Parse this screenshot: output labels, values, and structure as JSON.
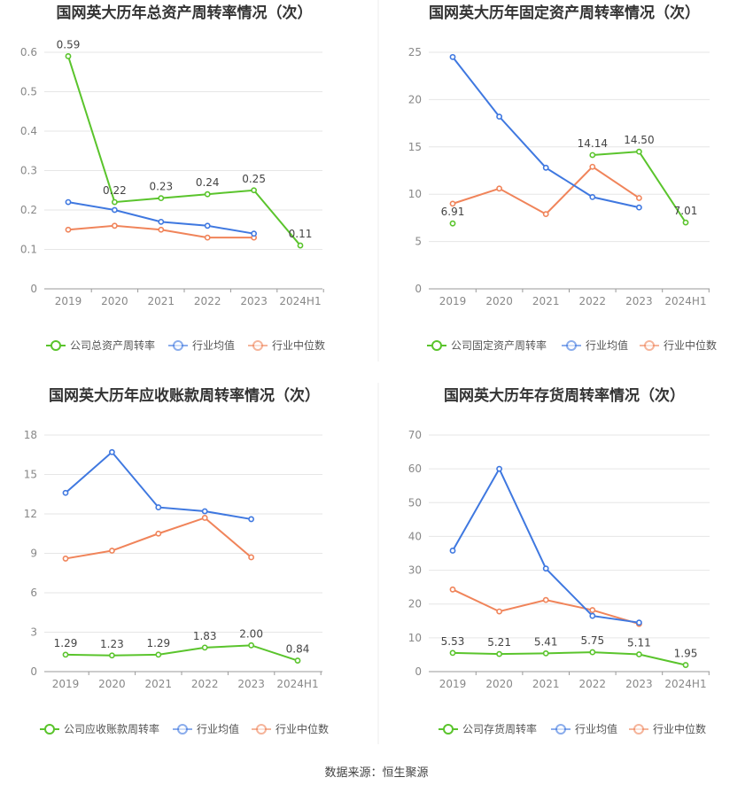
{
  "source": "数据来源：恒生聚源",
  "chart_data": [
    {
      "type": "line",
      "title": "国网英大历年总资产周转率情况（次）",
      "categories": [
        "2019",
        "2020",
        "2021",
        "2022",
        "2023",
        "2024H1"
      ],
      "ylim": [
        0,
        0.6
      ],
      "yticks": [
        "0",
        "0.1",
        "0.2",
        "0.3",
        "0.4",
        "0.5",
        "0.6"
      ],
      "grid": true,
      "legend_position": "bottom",
      "series": [
        {
          "name": "公司总资产周转率",
          "values": [
            0.59,
            0.22,
            0.23,
            0.24,
            0.25,
            0.11
          ],
          "labels": [
            "0.59",
            "0.22",
            "0.23",
            "0.24",
            "0.25",
            "0.11"
          ],
          "color": "#5ac42c"
        },
        {
          "name": "行业均值",
          "values": [
            0.22,
            0.2,
            0.17,
            0.16,
            0.14,
            null
          ],
          "color": "#3f78e0"
        },
        {
          "name": "行业中位数",
          "values": [
            0.15,
            0.16,
            0.15,
            0.13,
            0.13,
            null
          ],
          "color": "#f0845a"
        }
      ]
    },
    {
      "type": "line",
      "title": "国网英大历年固定资产周转率情况（次）",
      "categories": [
        "2019",
        "2020",
        "2021",
        "2022",
        "2023",
        "2024H1"
      ],
      "ylim": [
        0,
        25
      ],
      "yticks": [
        "0",
        "5",
        "10",
        "15",
        "20",
        "25"
      ],
      "grid": true,
      "legend_position": "bottom",
      "series": [
        {
          "name": "公司固定资产周转率",
          "values": [
            6.91,
            null,
            null,
            14.14,
            14.5,
            7.01
          ],
          "labels": [
            "6.91",
            "",
            "",
            "14.14",
            "14.50",
            "7.01"
          ],
          "color": "#5ac42c"
        },
        {
          "name": "行业均值",
          "values": [
            24.5,
            18.2,
            12.8,
            9.7,
            8.6,
            null
          ],
          "color": "#3f78e0"
        },
        {
          "name": "行业中位数",
          "values": [
            9.0,
            10.6,
            7.9,
            12.9,
            9.6,
            null
          ],
          "color": "#f0845a"
        }
      ]
    },
    {
      "type": "line",
      "title": "国网英大历年应收账款周转率情况（次）",
      "categories": [
        "2019",
        "2020",
        "2021",
        "2022",
        "2023",
        "2024H1"
      ],
      "ylim": [
        0,
        18
      ],
      "yticks": [
        "0",
        "3",
        "6",
        "9",
        "12",
        "15",
        "18"
      ],
      "grid": true,
      "legend_position": "bottom",
      "series": [
        {
          "name": "公司应收账款周转率",
          "values": [
            1.29,
            1.23,
            1.29,
            1.83,
            2.0,
            0.84
          ],
          "labels": [
            "1.29",
            "1.23",
            "1.29",
            "1.83",
            "2.00",
            "0.84"
          ],
          "color": "#5ac42c"
        },
        {
          "name": "行业均值",
          "values": [
            13.6,
            16.7,
            12.5,
            12.2,
            11.6,
            null
          ],
          "color": "#3f78e0"
        },
        {
          "name": "行业中位数",
          "values": [
            8.6,
            9.2,
            10.5,
            11.7,
            8.7,
            null
          ],
          "color": "#f0845a"
        }
      ]
    },
    {
      "type": "line",
      "title": "国网英大历年存货周转率情况（次）",
      "categories": [
        "2019",
        "2020",
        "2021",
        "2022",
        "2023",
        "2024H1"
      ],
      "ylim": [
        0,
        70
      ],
      "yticks": [
        "0",
        "10",
        "20",
        "30",
        "40",
        "50",
        "60",
        "70"
      ],
      "grid": true,
      "legend_position": "bottom",
      "series": [
        {
          "name": "公司存货周转率",
          "values": [
            5.53,
            5.21,
            5.41,
            5.75,
            5.11,
            1.95
          ],
          "labels": [
            "5.53",
            "5.21",
            "5.41",
            "5.75",
            "5.11",
            "1.95"
          ],
          "color": "#5ac42c"
        },
        {
          "name": "行业均值",
          "values": [
            35.8,
            60.0,
            30.5,
            16.5,
            14.5,
            null
          ],
          "color": "#3f78e0"
        },
        {
          "name": "行业中位数",
          "values": [
            24.3,
            17.8,
            21.2,
            18.2,
            14.1,
            null
          ],
          "color": "#f0845a"
        }
      ]
    }
  ]
}
